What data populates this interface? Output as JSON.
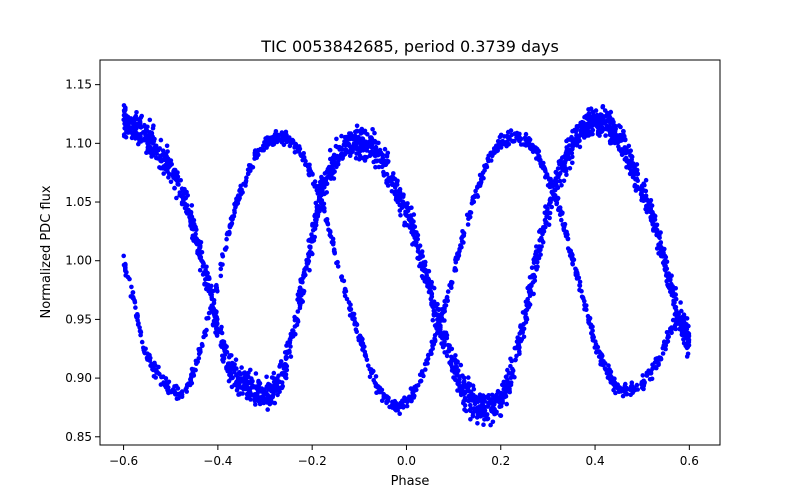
{
  "chart_data": {
    "type": "scatter",
    "title": "TIC 0053842685, period 0.3739 days",
    "xlabel": "Phase",
    "ylabel": "Normalized PDC flux",
    "xlim": [
      -0.65,
      0.665
    ],
    "ylim": [
      0.843,
      1.171
    ],
    "xticks": [
      -0.6,
      -0.4,
      -0.2,
      0.0,
      0.2,
      0.4,
      0.6
    ],
    "xtick_labels": [
      "−0.6",
      "−0.4",
      "−0.2",
      "0.0",
      "0.2",
      "0.4",
      "0.6"
    ],
    "yticks": [
      0.85,
      0.9,
      0.95,
      1.0,
      1.05,
      1.1,
      1.15
    ],
    "ytick_labels": [
      "0.85",
      "0.90",
      "0.95",
      "1.00",
      "1.05",
      "1.10",
      "1.15"
    ],
    "grid": false,
    "marker_color": "#0000ff",
    "series": [
      {
        "period": 0.3739,
        "phase_range": [
          -0.6,
          0.6
        ],
        "x": [
          -0.6,
          -0.58,
          -0.56,
          -0.54,
          -0.52,
          -0.5,
          -0.48,
          -0.46,
          -0.44,
          -0.42,
          -0.4,
          -0.38,
          -0.36,
          -0.34,
          -0.32,
          -0.3,
          -0.28,
          -0.26,
          -0.24,
          -0.22,
          -0.2,
          -0.18,
          -0.16,
          -0.14,
          -0.12,
          -0.1,
          -0.08,
          -0.06,
          -0.04,
          -0.02,
          0.0,
          0.02,
          0.04,
          0.06,
          0.08,
          0.1,
          0.12,
          0.14,
          0.16,
          0.18,
          0.2,
          0.22,
          0.24,
          0.26,
          0.28,
          0.3,
          0.32,
          0.34,
          0.36,
          0.38,
          0.4,
          0.42,
          0.44,
          0.46,
          0.48,
          0.5,
          0.52,
          0.54,
          0.56,
          0.58,
          0.6
        ],
        "y_branch_a": [
          1.12,
          1.115,
          1.11,
          1.1,
          1.09,
          1.08,
          1.06,
          1.04,
          1.01,
          0.98,
          0.94,
          0.915,
          0.9,
          0.895,
          0.89,
          0.885,
          0.89,
          0.905,
          0.94,
          0.98,
          1.02,
          1.06,
          1.08,
          1.095,
          1.1,
          1.1,
          1.1,
          1.09,
          1.08,
          1.06,
          1.04,
          1.02,
          0.99,
          0.96,
          0.935,
          0.91,
          0.89,
          0.88,
          0.875,
          0.875,
          0.88,
          0.9,
          0.93,
          0.97,
          1.01,
          1.04,
          1.07,
          1.09,
          1.105,
          1.115,
          1.12,
          1.12,
          1.11,
          1.1,
          1.08,
          1.06,
          1.04,
          1.01,
          0.98,
          0.95,
          0.93
        ],
        "y_branch_b": [
          1.0,
          0.97,
          0.93,
          0.91,
          0.9,
          0.89,
          0.885,
          0.895,
          0.92,
          0.95,
          0.98,
          1.02,
          1.05,
          1.07,
          1.09,
          1.1,
          1.105,
          1.105,
          1.1,
          1.09,
          1.07,
          1.05,
          1.02,
          0.99,
          0.96,
          0.935,
          0.91,
          0.89,
          0.88,
          0.875,
          0.88,
          0.89,
          0.91,
          0.935,
          0.96,
          0.99,
          1.02,
          1.05,
          1.07,
          1.09,
          1.1,
          1.105,
          1.105,
          1.1,
          1.09,
          1.07,
          1.05,
          1.02,
          0.99,
          0.96,
          0.93,
          0.91,
          0.895,
          0.89,
          0.89,
          0.895,
          0.905,
          0.92,
          0.94,
          0.95,
          0.93
        ]
      }
    ]
  }
}
